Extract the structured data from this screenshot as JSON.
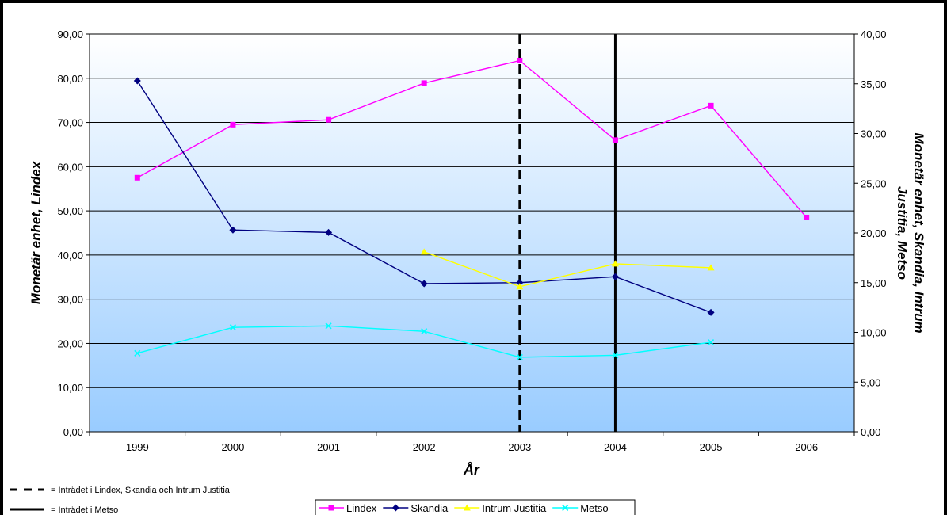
{
  "chart_data": {
    "type": "line",
    "categories": [
      "1999",
      "2000",
      "2001",
      "2002",
      "2003",
      "2004",
      "2005",
      "2006"
    ],
    "xlabel": "År",
    "ylabel_left": "Monetär enhet, Lindex",
    "ylabel_right": "Monetär enhet, Skandia, Intrum Justitia, Metso",
    "ylim_left": [
      0,
      90
    ],
    "ylim_right": [
      0,
      40
    ],
    "yticks_left": [
      "0,00",
      "10,00",
      "20,00",
      "30,00",
      "40,00",
      "50,00",
      "60,00",
      "70,00",
      "80,00",
      "90,00"
    ],
    "yticks_right": [
      "0,00",
      "5,00",
      "10,00",
      "15,00",
      "20,00",
      "25,00",
      "30,00",
      "35,00",
      "40,00"
    ],
    "grid": true,
    "legend_position": "bottom",
    "series": [
      {
        "name": "Lindex",
        "axis": "left",
        "color": "#ff00ff",
        "marker": "square",
        "values": [
          57.5,
          69.5,
          70.6,
          78.9,
          84.0,
          66.0,
          73.8,
          48.5
        ]
      },
      {
        "name": "Skandia",
        "axis": "right",
        "color": "#000080",
        "marker": "diamond",
        "values": [
          35.3,
          20.3,
          20.05,
          14.9,
          15.0,
          15.6,
          12.0,
          null
        ]
      },
      {
        "name": "Intrum Justitia",
        "axis": "right",
        "color": "#ffff00",
        "marker": "triangle",
        "values": [
          null,
          null,
          null,
          18.1,
          14.6,
          16.9,
          16.5,
          null
        ]
      },
      {
        "name": "Metso",
        "axis": "right",
        "color": "#00ffff",
        "marker": "x",
        "values": [
          7.9,
          10.5,
          10.65,
          10.1,
          7.5,
          7.7,
          9.0,
          null
        ]
      }
    ],
    "reference_lines": [
      {
        "category": "2003",
        "style": "dashed",
        "label": "= Inträdet i Lindex, Skandia och Intrum Justitia"
      },
      {
        "category": "2004",
        "style": "solid",
        "label": "= Inträdet i Metso"
      }
    ]
  }
}
